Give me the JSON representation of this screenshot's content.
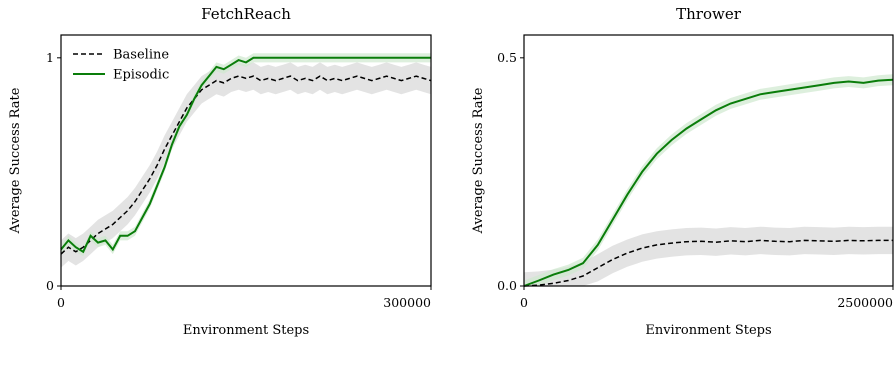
{
  "chart_data": [
    {
      "type": "line",
      "title": "FetchReach",
      "xlabel": "Environment Steps",
      "ylabel": "Average Success Rate",
      "xlim": [
        0,
        300000
      ],
      "ylim": [
        0,
        1.1
      ],
      "xtick_labels": [
        "0",
        "300000"
      ],
      "ytick_labels": [
        "0",
        "1"
      ],
      "legend": "top-left",
      "series": [
        {
          "name": "Baseline",
          "color": "#000000",
          "style": "dashed",
          "x": [
            0,
            6000,
            12000,
            18000,
            24000,
            30000,
            36000,
            42000,
            48000,
            54000,
            60000,
            66000,
            72000,
            78000,
            84000,
            90000,
            96000,
            102000,
            108000,
            114000,
            120000,
            126000,
            132000,
            138000,
            144000,
            150000,
            156000,
            162000,
            168000,
            174000,
            180000,
            186000,
            192000,
            198000,
            204000,
            210000,
            216000,
            222000,
            228000,
            234000,
            240000,
            246000,
            252000,
            258000,
            264000,
            270000,
            276000,
            282000,
            288000,
            294000,
            300000
          ],
          "y": [
            0.14,
            0.17,
            0.15,
            0.17,
            0.2,
            0.23,
            0.25,
            0.27,
            0.3,
            0.33,
            0.37,
            0.42,
            0.47,
            0.53,
            0.6,
            0.66,
            0.72,
            0.78,
            0.82,
            0.86,
            0.88,
            0.9,
            0.89,
            0.91,
            0.92,
            0.91,
            0.92,
            0.9,
            0.91,
            0.9,
            0.91,
            0.92,
            0.9,
            0.91,
            0.9,
            0.92,
            0.9,
            0.91,
            0.9,
            0.91,
            0.92,
            0.91,
            0.9,
            0.91,
            0.92,
            0.91,
            0.9,
            0.91,
            0.92,
            0.91,
            0.9
          ],
          "band": 0.06
        },
        {
          "name": "Episodic",
          "color": "#0a7d0a",
          "style": "solid",
          "x": [
            0,
            6000,
            12000,
            18000,
            24000,
            30000,
            36000,
            42000,
            48000,
            54000,
            60000,
            66000,
            72000,
            78000,
            84000,
            90000,
            96000,
            102000,
            108000,
            114000,
            120000,
            126000,
            132000,
            138000,
            144000,
            150000,
            156000,
            162000,
            168000,
            174000,
            180000,
            186000,
            192000,
            198000,
            204000,
            210000,
            216000,
            222000,
            228000,
            234000,
            240000,
            246000,
            252000,
            258000,
            264000,
            270000,
            276000,
            282000,
            288000,
            294000,
            300000
          ],
          "y": [
            0.16,
            0.2,
            0.17,
            0.15,
            0.22,
            0.19,
            0.2,
            0.16,
            0.22,
            0.22,
            0.24,
            0.3,
            0.36,
            0.44,
            0.52,
            0.62,
            0.7,
            0.75,
            0.82,
            0.88,
            0.92,
            0.96,
            0.95,
            0.97,
            0.99,
            0.98,
            1.0,
            1.0,
            1.0,
            1.0,
            1.0,
            1.0,
            1.0,
            1.0,
            1.0,
            1.0,
            1.0,
            1.0,
            1.0,
            1.0,
            1.0,
            1.0,
            1.0,
            1.0,
            1.0,
            1.0,
            1.0,
            1.0,
            1.0,
            1.0,
            1.0
          ],
          "band": 0.02
        }
      ]
    },
    {
      "type": "line",
      "title": "Thrower",
      "xlabel": "Environment Steps",
      "ylabel": "Average Success Rate",
      "xlim": [
        0,
        2500000
      ],
      "ylim": [
        0,
        0.55
      ],
      "xtick_labels": [
        "0",
        "2500000"
      ],
      "ytick_labels": [
        "0.0",
        "0.5"
      ],
      "series": [
        {
          "name": "Baseline",
          "color": "#000000",
          "style": "dashed",
          "x": [
            0,
            100000,
            200000,
            300000,
            400000,
            500000,
            600000,
            700000,
            800000,
            900000,
            1000000,
            1100000,
            1200000,
            1300000,
            1400000,
            1500000,
            1600000,
            1700000,
            1800000,
            1900000,
            2000000,
            2100000,
            2200000,
            2300000,
            2400000,
            2500000
          ],
          "y": [
            0.0,
            0.002,
            0.006,
            0.012,
            0.022,
            0.04,
            0.058,
            0.072,
            0.083,
            0.09,
            0.094,
            0.097,
            0.098,
            0.096,
            0.099,
            0.097,
            0.1,
            0.098,
            0.097,
            0.1,
            0.099,
            0.098,
            0.1,
            0.099,
            0.1,
            0.1
          ],
          "band": 0.03
        },
        {
          "name": "Episodic",
          "color": "#0a7d0a",
          "style": "solid",
          "x": [
            0,
            100000,
            200000,
            300000,
            400000,
            500000,
            600000,
            700000,
            800000,
            900000,
            1000000,
            1100000,
            1200000,
            1300000,
            1400000,
            1500000,
            1600000,
            1700000,
            1800000,
            1900000,
            2000000,
            2100000,
            2200000,
            2300000,
            2400000,
            2500000
          ],
          "y": [
            0.0,
            0.012,
            0.025,
            0.035,
            0.05,
            0.09,
            0.145,
            0.2,
            0.25,
            0.29,
            0.32,
            0.345,
            0.365,
            0.385,
            0.4,
            0.41,
            0.42,
            0.425,
            0.43,
            0.435,
            0.44,
            0.445,
            0.448,
            0.445,
            0.45,
            0.452
          ],
          "band": 0.012
        }
      ]
    }
  ]
}
